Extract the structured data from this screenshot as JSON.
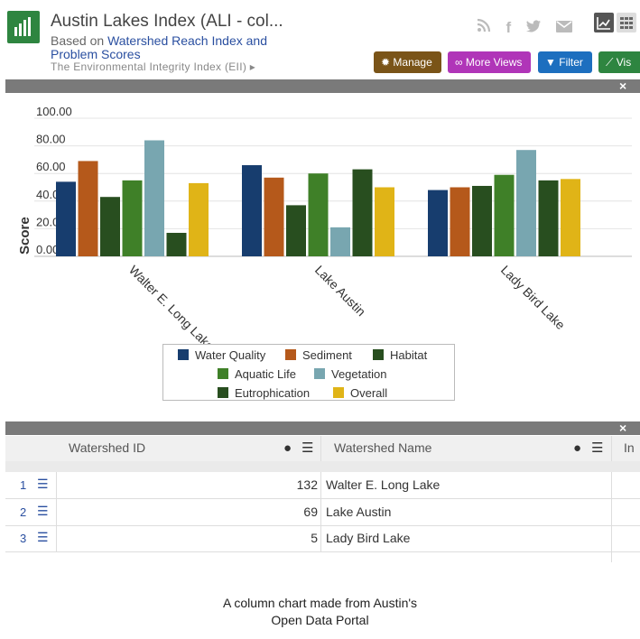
{
  "header": {
    "title": "Austin Lakes Index (ALI - col...",
    "based_on": "Based on",
    "based_on_link": "Watershed Reach Index and Problem Scores",
    "breadcrumb": "The Environmental Integrity Index (EII)",
    "social_icons": [
      "rss-icon",
      "facebook-icon",
      "twitter-icon",
      "mail-icon"
    ]
  },
  "toolbar": {
    "manage": "Manage",
    "more_views": "More Views",
    "filter": "Filter",
    "visualize": "Vis",
    "colors": {
      "manage": "#7a5418",
      "more_views": "#b035b8",
      "filter": "#1d6fbf",
      "visualize": "#2e8540"
    }
  },
  "chart_data": {
    "type": "bar",
    "categories": [
      "Walter E. Long Lake",
      "Lake Austin",
      "Lady Bird Lake"
    ],
    "series": [
      {
        "name": "Water Quality",
        "color": "#173d6e",
        "values": [
          54,
          66,
          48
        ]
      },
      {
        "name": "Sediment",
        "color": "#b5591b",
        "values": [
          69,
          57,
          50
        ]
      },
      {
        "name": "Habitat",
        "color": "#284e1f",
        "values": [
          43,
          37,
          51
        ]
      },
      {
        "name": "Aquatic Life",
        "color": "#3f8028",
        "values": [
          55,
          60,
          59
        ]
      },
      {
        "name": "Vegetation",
        "color": "#78a6b0",
        "values": [
          84,
          21,
          77
        ]
      },
      {
        "name": "Eutrophication",
        "color": "#284e1f",
        "values": [
          17,
          63,
          55
        ]
      },
      {
        "name": "Overall",
        "color": "#e0b417",
        "values": [
          53,
          50,
          56
        ]
      }
    ],
    "yticks": [
      "100.00",
      "80.00",
      "60.00",
      "40.00",
      "20.00",
      "0.00"
    ],
    "ylabel": "Score",
    "ylim": [
      0,
      100
    ],
    "legend_position": "bottom"
  },
  "table": {
    "columns": [
      "Watershed ID",
      "Watershed Name",
      "In"
    ],
    "rows": [
      {
        "index": "1",
        "id": "132",
        "name": "Walter E. Long Lake"
      },
      {
        "index": "2",
        "id": "69",
        "name": "Lake Austin"
      },
      {
        "index": "3",
        "id": "5",
        "name": "Lady Bird Lake"
      }
    ]
  },
  "caption": [
    "A column chart made from Austin's",
    "Open Data Portal"
  ]
}
